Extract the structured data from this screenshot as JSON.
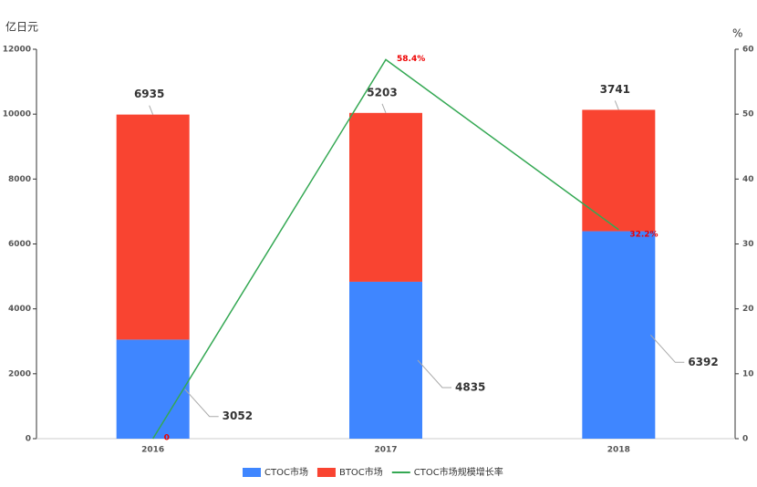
{
  "chart_data": {
    "type": "bar",
    "y_label": "亿日元",
    "y2_label": "%",
    "categories": [
      "2016",
      "2017",
      "2018"
    ],
    "series": [
      {
        "name": "CTOC市场",
        "type": "bar",
        "color": "#3f86ff",
        "values": [
          3052,
          4835,
          6392
        ]
      },
      {
        "name": "BTOC市场",
        "type": "bar",
        "color": "#f94431",
        "values": [
          6935,
          5203,
          3741
        ]
      },
      {
        "name": "CTOC市场规模增长率",
        "type": "line",
        "axis": "y2",
        "color": "#34a853",
        "values": [
          0,
          58.4,
          32.2
        ],
        "value_labels": [
          "0",
          "58.4%",
          "32.2%"
        ]
      }
    ],
    "stacked": true,
    "ylim": [
      0,
      12000
    ],
    "yticks": [
      0,
      2000,
      4000,
      6000,
      8000,
      10000,
      12000
    ],
    "y2lim": [
      0,
      60
    ],
    "y2ticks": [
      0,
      10,
      20,
      30,
      40,
      50,
      60
    ],
    "legend": "bottom"
  }
}
